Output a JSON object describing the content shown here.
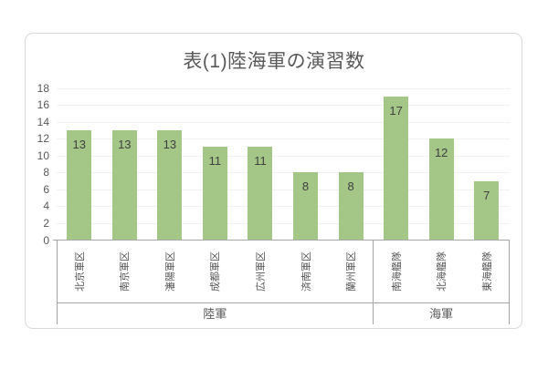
{
  "chart_data": {
    "type": "bar",
    "title": "表(1)陸海軍の演習数",
    "categories": [
      "北京軍区",
      "南京軍区",
      "瀋陽軍区",
      "成都軍区",
      "広州軍区",
      "済南軍区",
      "蘭州軍区",
      "南海艦隊",
      "北海艦隊",
      "東海艦隊"
    ],
    "values": [
      13,
      13,
      13,
      11,
      11,
      8,
      8,
      17,
      12,
      7
    ],
    "groups": [
      {
        "label": "陸軍",
        "categories": [
          "北京軍区",
          "南京軍区",
          "瀋陽軍区",
          "成都軍区",
          "広州軍区",
          "済南軍区",
          "蘭州軍区"
        ],
        "values": [
          13,
          13,
          13,
          11,
          11,
          8,
          8
        ]
      },
      {
        "label": "海軍",
        "categories": [
          "南海艦隊",
          "北海艦隊",
          "東海艦隊"
        ],
        "values": [
          17,
          12,
          7
        ]
      }
    ],
    "y_ticks": [
      0,
      2,
      4,
      6,
      8,
      10,
      12,
      14,
      16,
      18
    ],
    "ylim": [
      0,
      18
    ],
    "xlabel": "",
    "ylabel": "",
    "grid": true,
    "legend": "none",
    "data_labels": true,
    "colors": {
      "bar": "#A4C687",
      "bar_value_label": "#404040",
      "axis_text": "#595959",
      "title_text": "#595959",
      "axis_line": "#A6A6A6",
      "gridline": "#F2F2F2",
      "frame_border": "#D9D9D9",
      "background": "#FFFFFF"
    }
  }
}
